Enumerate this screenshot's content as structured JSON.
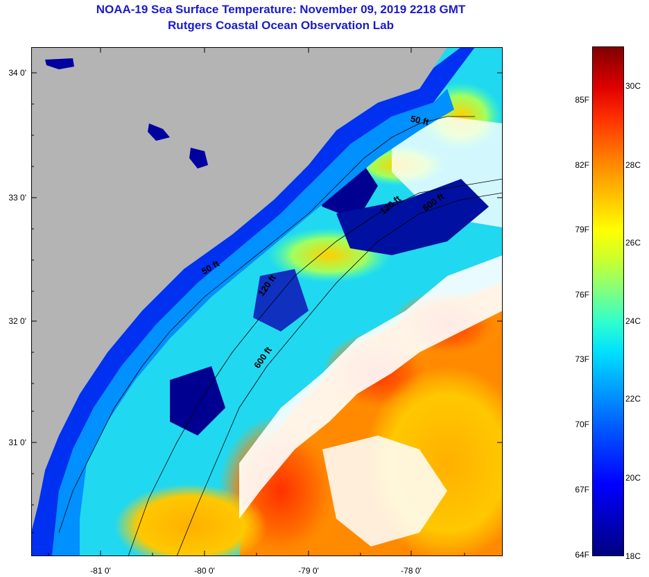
{
  "title": {
    "line1": "NOAA-19 Sea Surface Temperature:  November 09, 2019 2218 GMT",
    "line2": "Rutgers Coastal Ocean Observation Lab"
  },
  "axes": {
    "latitude_labels": [
      "34 0'",
      "33 0'",
      "32 0'",
      "31 0'"
    ],
    "longitude_labels": [
      "-81 0'",
      "-80 0'",
      "-79 0'",
      "-78 0'"
    ]
  },
  "contours": {
    "labels": [
      "50 ft",
      "50 ft",
      "120 ft",
      "600 ft",
      "120 ft",
      "600 ft"
    ]
  },
  "colorbar": {
    "fahrenheit_labels": [
      "85F",
      "82F",
      "79F",
      "76F",
      "73F",
      "70F",
      "67F",
      "64F"
    ],
    "celsius_labels": [
      "30C",
      "28C",
      "26C",
      "24C",
      "22C",
      "20C",
      "18C"
    ]
  },
  "colors": {
    "land": "#b4b4b4",
    "cloud": "#ffffff",
    "title": "#1a1acc",
    "cold": "#000080",
    "warm": "#800000"
  }
}
